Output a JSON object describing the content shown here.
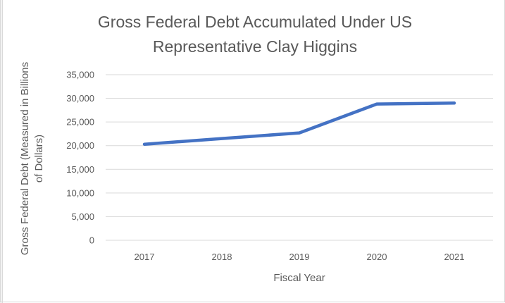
{
  "chart_data": {
    "type": "line",
    "title_lines": [
      "Gross Federal Debt Accumulated Under US",
      "Representative Clay Higgins"
    ],
    "xlabel": "Fiscal Year",
    "ylabel_lines": [
      "Gross Federal Debt (Measured in Billions",
      "of Dollars)"
    ],
    "categories": [
      "2017",
      "2018",
      "2019",
      "2020",
      "2021"
    ],
    "series": [
      {
        "values": [
          20300,
          21500,
          22700,
          28800,
          29000
        ],
        "color": "#4472c4"
      }
    ],
    "ylim": [
      0,
      35000
    ],
    "yticks": [
      0,
      5000,
      10000,
      15000,
      20000,
      25000,
      30000,
      35000
    ],
    "ytick_labels": [
      "0",
      "5,000",
      "10,000",
      "15,000",
      "20,000",
      "25,000",
      "30,000",
      "35,000"
    ],
    "grid": true,
    "colors": {
      "grid": "#d9d9d9",
      "text": "#595959"
    }
  }
}
